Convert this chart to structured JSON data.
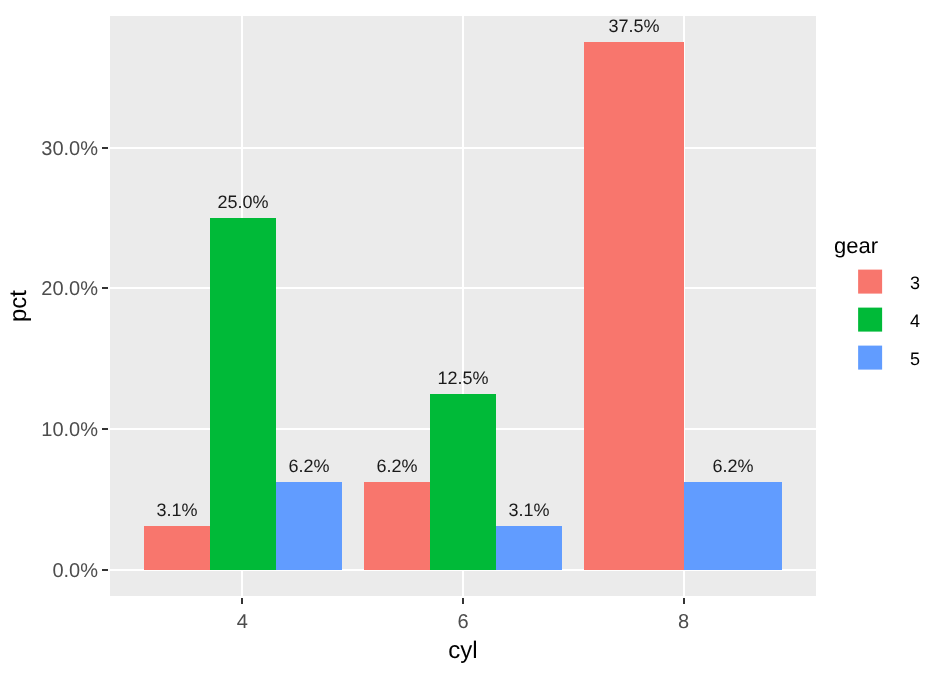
{
  "chart_data": {
    "type": "bar",
    "xlabel": "cyl",
    "ylabel": "pct",
    "legend_title": "gear",
    "categories": [
      "4",
      "6",
      "8"
    ],
    "series": [
      {
        "name": "3",
        "color": "#f8766d",
        "values": [
          3.1,
          6.2,
          37.5
        ],
        "value_labels": [
          "3.1%",
          "6.2%",
          "37.5%"
        ]
      },
      {
        "name": "4",
        "color": "#00ba38",
        "values": [
          25.0,
          12.5,
          null
        ],
        "value_labels": [
          "25.0%",
          "12.5%",
          null
        ]
      },
      {
        "name": "5",
        "color": "#619cff",
        "values": [
          6.2,
          3.1,
          6.2
        ],
        "value_labels": [
          "6.2%",
          "3.1%",
          "6.2%"
        ]
      }
    ],
    "ylim": [
      -1.875,
      39.375
    ],
    "yticks": [
      {
        "value": 0,
        "label": "0.0%"
      },
      {
        "value": 10,
        "label": "10.0%"
      },
      {
        "value": 20,
        "label": "20.0%"
      },
      {
        "value": 30,
        "label": "30.0%"
      }
    ],
    "grid": true,
    "legend": "right"
  }
}
